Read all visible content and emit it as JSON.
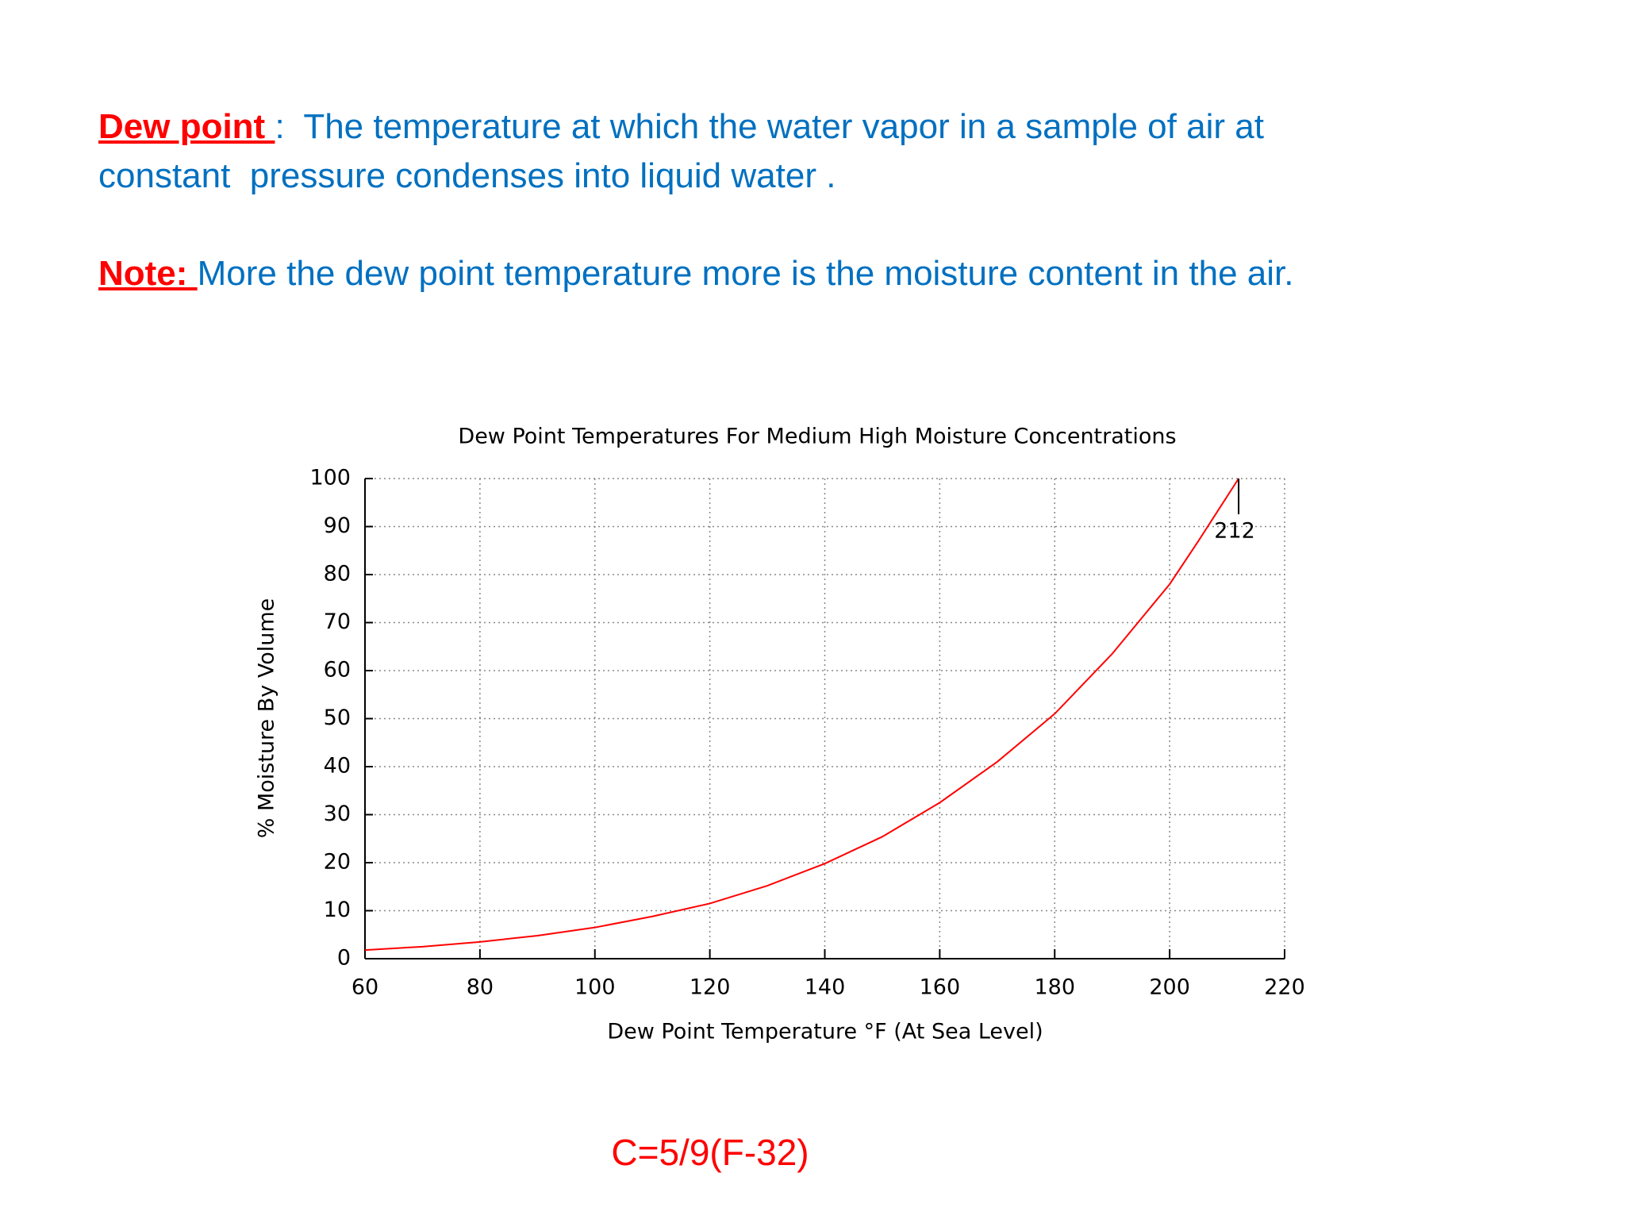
{
  "slide": {
    "definition": {
      "term": "Dew point ",
      "line1": ":  The temperature at which the water vapor in a sample of air at",
      "line2": "constant  pressure condenses into liquid water ."
    },
    "note": {
      "term": "Note: ",
      "text": "More the dew point temperature more is the moisture content in the air."
    },
    "formula": "C=5/9(F-32)"
  },
  "chart_data": {
    "type": "line",
    "title": "Dew Point Temperatures For Medium  High Moisture Concentrations",
    "xlabel": "Dew Point Temperature °F (At Sea Level)",
    "ylabel": "% Moisture By Volume",
    "x": [
      60,
      70,
      80,
      90,
      100,
      110,
      120,
      130,
      140,
      150,
      160,
      170,
      180,
      190,
      200,
      205,
      212
    ],
    "series": [
      {
        "color": "#ff0000",
        "values": [
          1.8,
          2.5,
          3.5,
          4.8,
          6.5,
          8.8,
          11.5,
          15.2,
          19.8,
          25.4,
          32.5,
          41,
          51,
          63.5,
          78,
          87,
          100
        ]
      }
    ],
    "xlim": [
      60,
      220
    ],
    "xticks": [
      60,
      80,
      100,
      120,
      140,
      160,
      180,
      200,
      220
    ],
    "ylim": [
      0,
      100
    ],
    "yticks": [
      0,
      10,
      20,
      30,
      40,
      50,
      60,
      70,
      80,
      90,
      100
    ],
    "grid": true,
    "annotation": {
      "label": "212",
      "x": 212
    }
  }
}
